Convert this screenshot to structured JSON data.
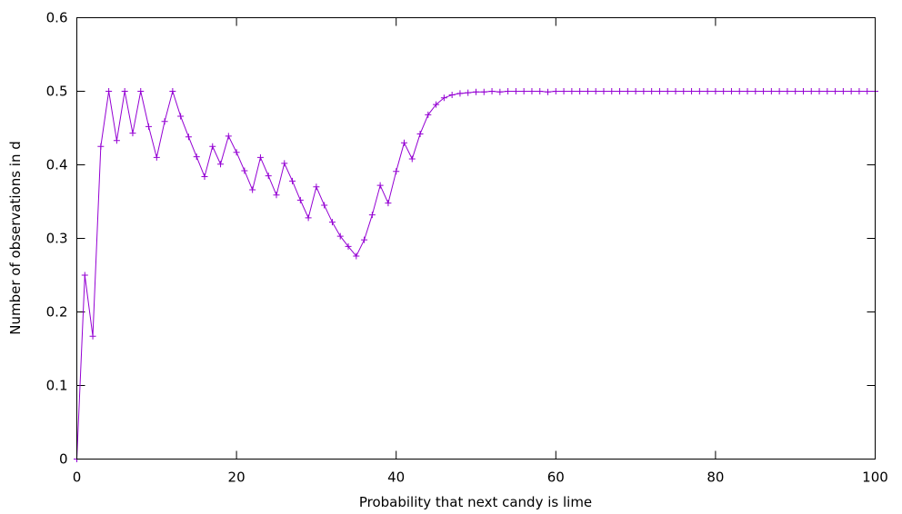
{
  "chart_data": {
    "type": "line",
    "xlabel": "Probability that next candy is lime",
    "ylabel": "Number of observations in d",
    "xlim": [
      0,
      100
    ],
    "ylim": [
      0,
      0.6
    ],
    "xticks": [
      "0",
      "20",
      "40",
      "60",
      "80",
      "100"
    ],
    "yticks": [
      "0",
      "0.1",
      "0.2",
      "0.3",
      "0.4",
      "0.5",
      "0.6"
    ],
    "grid": false,
    "marker": "plus",
    "color": "#9400d3",
    "series": [
      {
        "x": [
          0,
          1,
          2,
          3,
          4,
          5,
          6,
          7,
          8,
          9,
          10,
          11,
          12,
          13,
          14,
          15,
          16,
          17,
          18,
          19,
          20,
          21,
          22,
          23,
          24,
          25,
          26,
          27,
          28,
          29,
          30,
          31,
          32,
          33,
          34,
          35,
          36,
          37,
          38,
          39,
          40,
          41,
          42,
          43,
          44,
          45,
          46,
          47,
          48,
          49,
          50,
          51,
          52,
          53,
          54,
          55,
          56,
          57,
          58,
          59,
          60,
          61,
          62,
          63,
          64,
          65,
          66,
          67,
          68,
          69,
          70,
          71,
          72,
          73,
          74,
          75,
          76,
          77,
          78,
          79,
          80,
          81,
          82,
          83,
          84,
          85,
          86,
          87,
          88,
          89,
          90,
          91,
          92,
          93,
          94,
          95,
          96,
          97,
          98,
          99,
          100
        ],
        "y": [
          0,
          0.25,
          0.167,
          0.425,
          0.5,
          0.433,
          0.5,
          0.443,
          0.5,
          0.452,
          0.41,
          0.459,
          0.5,
          0.466,
          0.438,
          0.411,
          0.384,
          0.425,
          0.401,
          0.439,
          0.417,
          0.392,
          0.366,
          0.41,
          0.385,
          0.359,
          0.402,
          0.378,
          0.352,
          0.328,
          0.37,
          0.345,
          0.322,
          0.303,
          0.289,
          0.276,
          0.298,
          0.332,
          0.372,
          0.348,
          0.391,
          0.43,
          0.408,
          0.442,
          0.468,
          0.482,
          0.491,
          0.495,
          0.497,
          0.498,
          0.499,
          0.499,
          0.5,
          0.499,
          0.5,
          0.5,
          0.5,
          0.5,
          0.5,
          0.499,
          0.5,
          0.5,
          0.5,
          0.5,
          0.5,
          0.5,
          0.5,
          0.5,
          0.5,
          0.5,
          0.5,
          0.5,
          0.5,
          0.5,
          0.5,
          0.5,
          0.5,
          0.5,
          0.5,
          0.5,
          0.5,
          0.5,
          0.5,
          0.5,
          0.5,
          0.5,
          0.5,
          0.5,
          0.5,
          0.5,
          0.5,
          0.5,
          0.5,
          0.5,
          0.5,
          0.5,
          0.5,
          0.5,
          0.5,
          0.5,
          0.5
        ]
      }
    ]
  }
}
